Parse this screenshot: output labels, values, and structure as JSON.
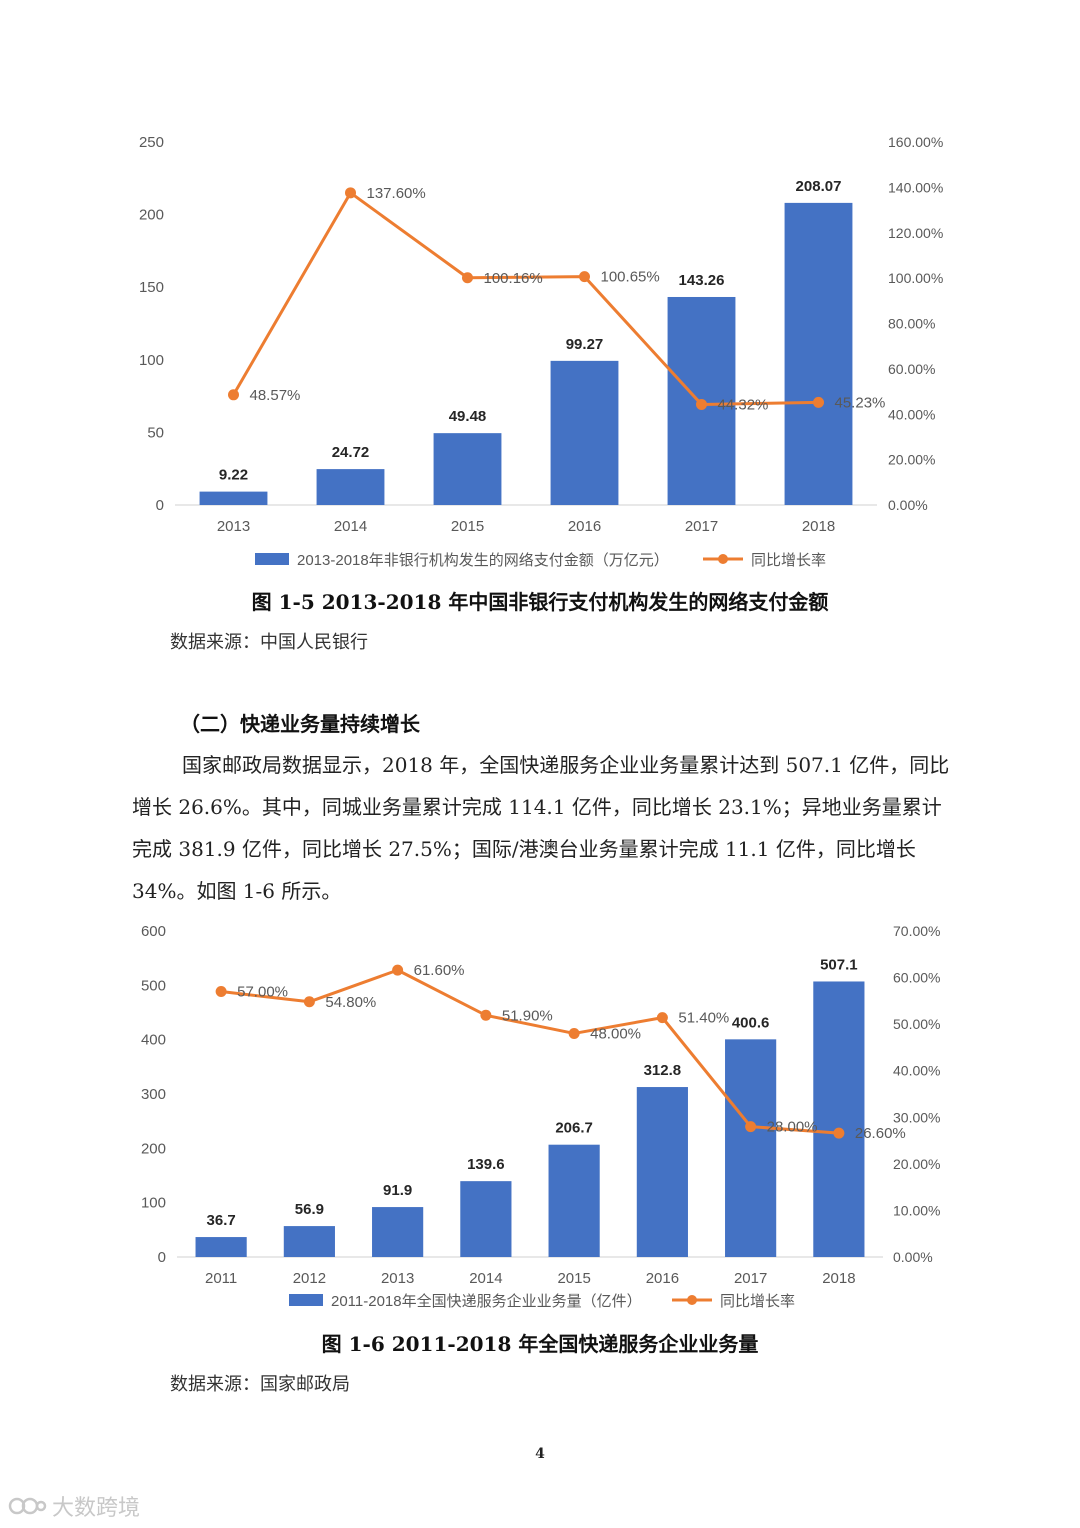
{
  "chart_data": [
    {
      "type": "bar+line",
      "categories": [
        "2013",
        "2014",
        "2015",
        "2016",
        "2017",
        "2018"
      ],
      "series": [
        {
          "name": "2013-2018年非银行机构发生的网络支付金额（万亿元）",
          "kind": "bar",
          "axis": "left",
          "values": [
            9.22,
            24.72,
            49.48,
            99.27,
            143.26,
            208.07
          ],
          "labels": [
            "9.22",
            "24.72",
            "49.48",
            "99.27",
            "143.26",
            "208.07"
          ]
        },
        {
          "name": "同比增长率",
          "kind": "line",
          "axis": "right",
          "values": [
            48.57,
            137.6,
            100.16,
            100.65,
            44.32,
            45.23
          ],
          "labels": [
            "48.57%",
            "137.60%",
            "100.16%",
            "100.65%",
            "44.32%",
            "45.23%"
          ]
        }
      ],
      "y_left": {
        "min": 0,
        "max": 250,
        "ticks": [
          "0",
          "50",
          "100",
          "150",
          "200",
          "250"
        ]
      },
      "y_right": {
        "min": 0,
        "max": 160,
        "ticks": [
          "0.00%",
          "20.00%",
          "40.00%",
          "60.00%",
          "80.00%",
          "100.00%",
          "120.00%",
          "140.00%",
          "160.00%"
        ]
      },
      "bar_color": "#4472C4",
      "line_color": "#ED7D31",
      "caption": "图 1-5 2013-2018 年中国非银行支付机构发生的网络支付金额",
      "source": "数据来源：中国人民银行"
    },
    {
      "type": "bar+line",
      "categories": [
        "2011",
        "2012",
        "2013",
        "2014",
        "2015",
        "2016",
        "2017",
        "2018"
      ],
      "series": [
        {
          "name": "2011-2018年全国快递服务企业业务量（亿件）",
          "kind": "bar",
          "axis": "left",
          "values": [
            36.7,
            56.9,
            91.9,
            139.6,
            206.7,
            312.8,
            400.6,
            507.1
          ],
          "labels": [
            "36.7",
            "56.9",
            "91.9",
            "139.6",
            "206.7",
            "312.8",
            "400.6",
            "507.1"
          ]
        },
        {
          "name": "同比增长率",
          "kind": "line",
          "axis": "right",
          "values": [
            57.0,
            54.8,
            61.6,
            51.9,
            48.0,
            51.4,
            28.0,
            26.6
          ],
          "labels": [
            "57.00%",
            "54.80%",
            "61.60%",
            "51.90%",
            "48.00%",
            "51.40%",
            "28.00%",
            "26.60%"
          ]
        }
      ],
      "y_left": {
        "min": 0,
        "max": 600,
        "ticks": [
          "0",
          "100",
          "200",
          "300",
          "400",
          "500",
          "600"
        ]
      },
      "y_right": {
        "min": 0,
        "max": 70,
        "ticks": [
          "0.00%",
          "10.00%",
          "20.00%",
          "30.00%",
          "40.00%",
          "50.00%",
          "60.00%",
          "70.00%"
        ]
      },
      "bar_color": "#4472C4",
      "line_color": "#ED7D31",
      "caption": "图 1-6 2011-2018 年全国快递服务企业业务量",
      "source": "数据来源：国家邮政局"
    }
  ],
  "section": {
    "heading": "（二）快递业务量持续增长",
    "paragraph": "国家邮政局数据显示，2018 年，全国快递服务企业业务量累计达到 507.1 亿件，同比增长 26.6%。其中，同城业务量累计完成 114.1 亿件，同比增长 23.1%；异地业务量累计完成 381.9 亿件，同比增长 27.5%；国际/港澳台业务量累计完成 11.1 亿件，同比增长 34%。如图 1-6 所示。"
  },
  "page_number": "4",
  "watermark": "大数跨境"
}
